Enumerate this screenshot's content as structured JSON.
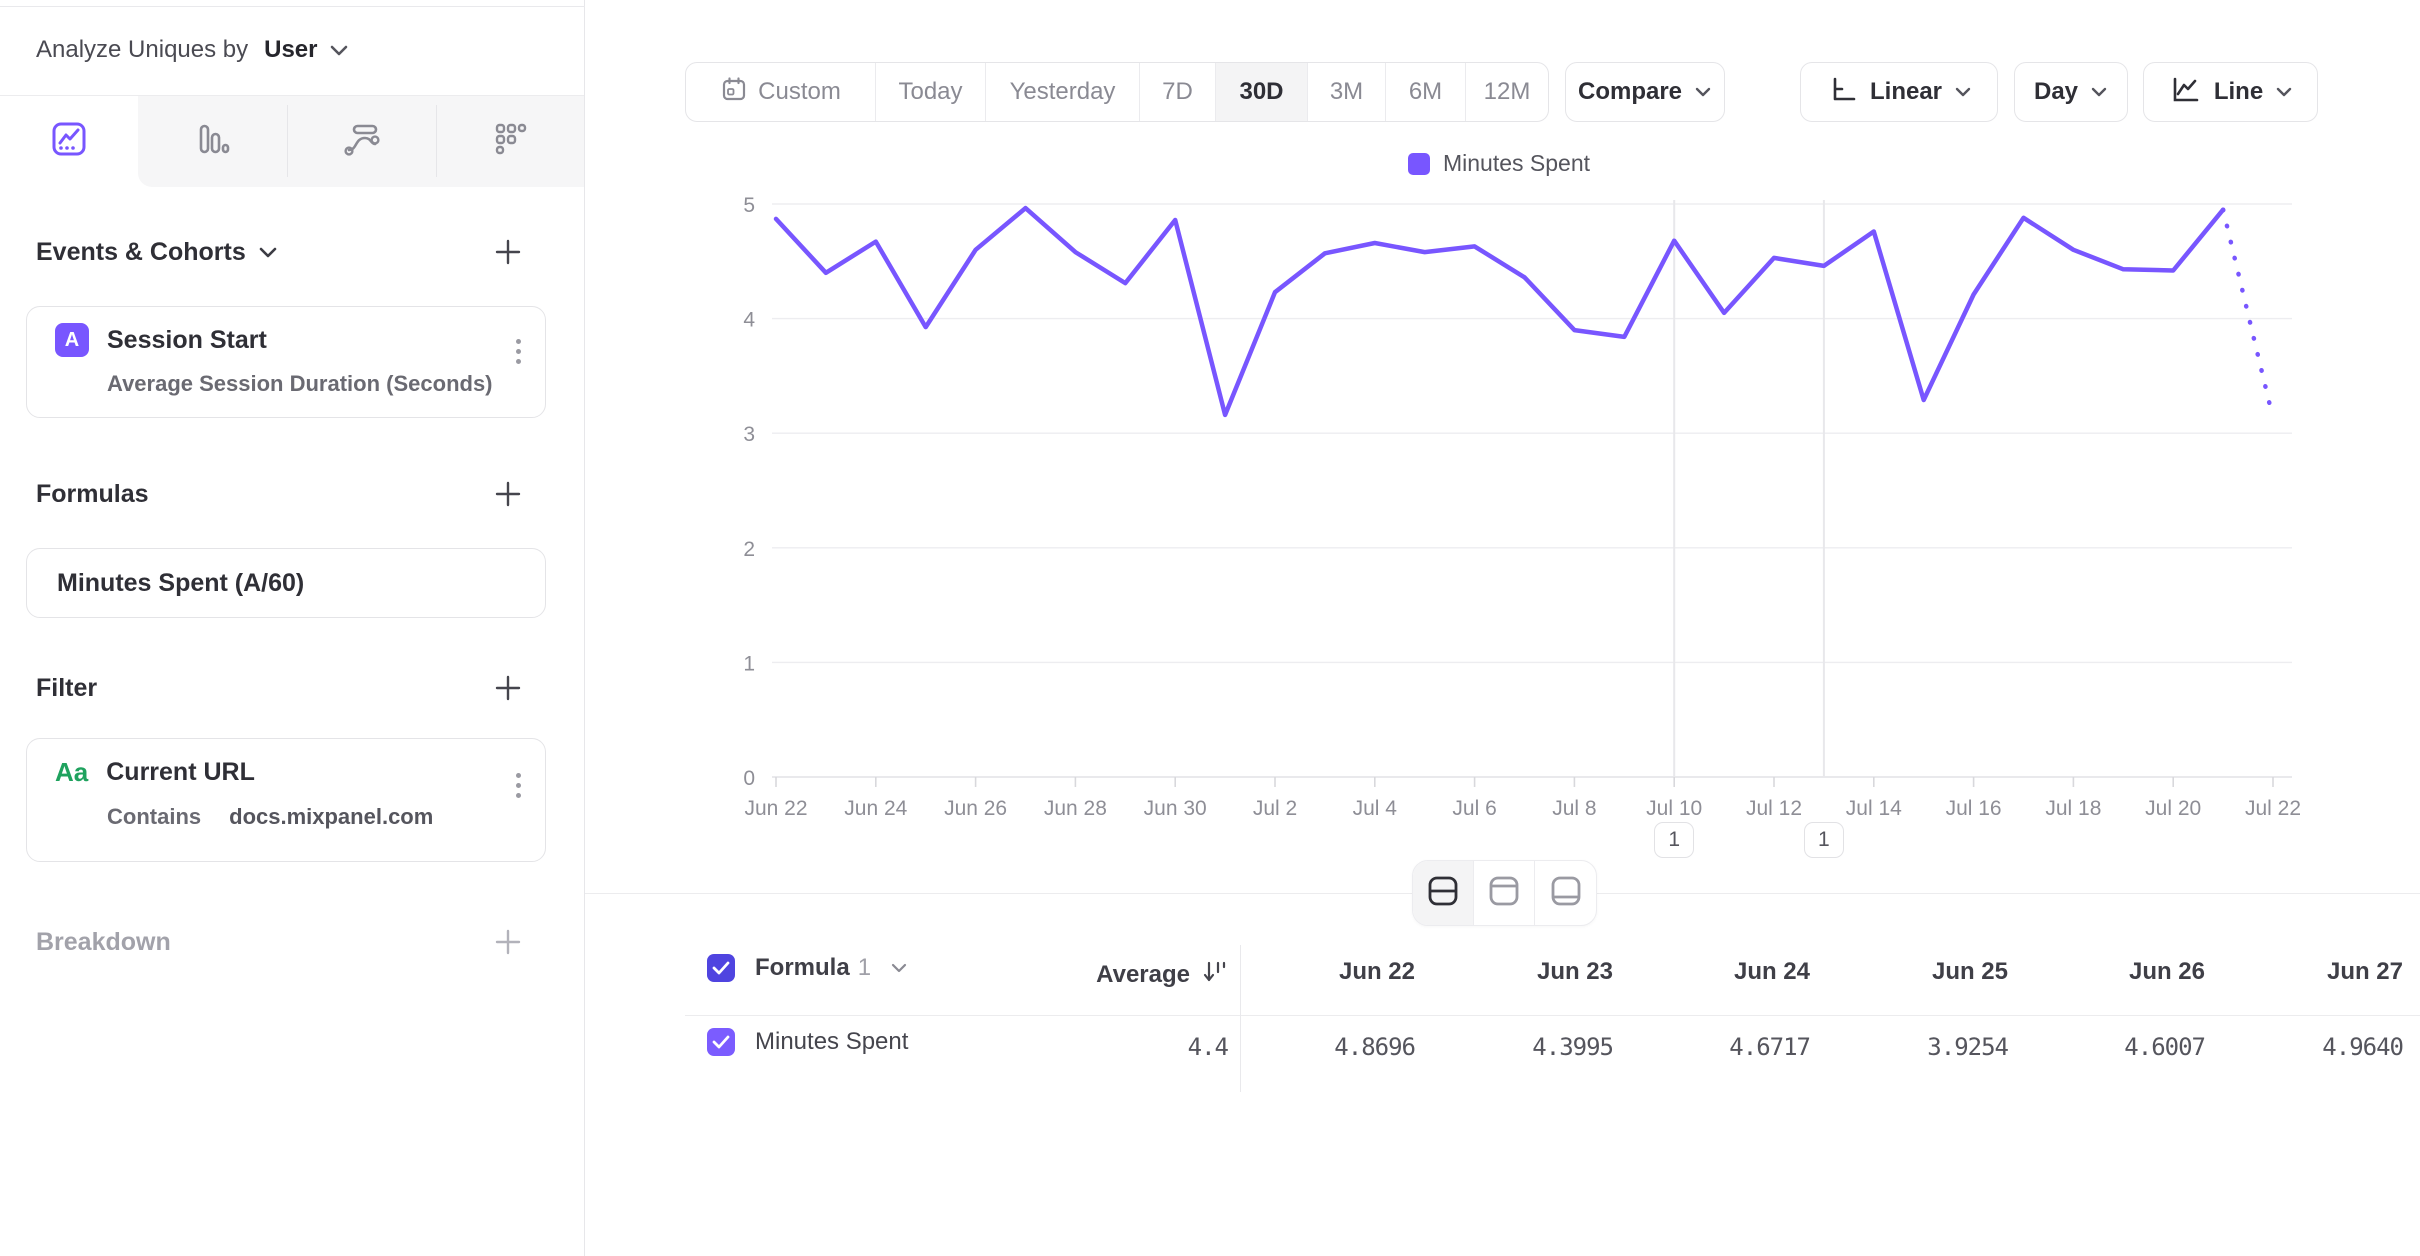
{
  "colors": {
    "accent": "#7856ff",
    "header_checkbox": "#4f44e0",
    "row_checkbox": "#7b5cff",
    "filter_icon_green": "#1fa25e",
    "gridline": "#ededf0",
    "axis_text": "#8e8e96"
  },
  "icons": {
    "calendar-icon": "calendar glyph",
    "chevron-down-icon": "v chevron",
    "plus-icon": "+",
    "kebab-menu-icon": "vertical 3 dots",
    "insights-tab-icon": "line chart in square",
    "funnels-tab-icon": "descending bars",
    "flows-tab-icon": "wavy flow lines",
    "retention-tab-icon": "dot grid staircase",
    "linear-scale-icon": "axis corner",
    "line-chart-icon": "mini trend line",
    "sort-descending-icon": "down arrow with bars",
    "checkbox-check-icon": "white check mark",
    "layout-split-icon": "rect split middle",
    "layout-chart-icon": "rect line top",
    "layout-table-icon": "rect line bottom"
  },
  "sidebar": {
    "analyze_label": "Analyze Uniques by",
    "analyze_value": "User",
    "events_title": "Events & Cohorts",
    "event_card": {
      "badge": "A",
      "title": "Session Start",
      "subtitle": "Average Session Duration (Seconds)"
    },
    "formulas_title": "Formulas",
    "formula_card_title": "Minutes Spent (A/60)",
    "filter_title": "Filter",
    "filter_card": {
      "icon": "Aa",
      "title": "Current URL",
      "operator": "Contains",
      "value": "docs.mixpanel.com"
    },
    "breakdown_title": "Breakdown"
  },
  "toolbar": {
    "date_ranges": [
      "Custom",
      "Today",
      "Yesterday",
      "7D",
      "30D",
      "3M",
      "6M",
      "12M"
    ],
    "selected_range": "30D",
    "compare_label": "Compare",
    "scale_label": "Linear",
    "granularity_label": "Day",
    "chart_type_label": "Line"
  },
  "chart_data": {
    "type": "line",
    "legend_position": "top-center",
    "grid": true,
    "ylim": [
      0,
      5
    ],
    "yticks": [
      0,
      1,
      2,
      3,
      4,
      5
    ],
    "x": [
      "Jun 22",
      "Jun 23",
      "Jun 24",
      "Jun 25",
      "Jun 26",
      "Jun 27",
      "Jun 28",
      "Jun 29",
      "Jun 30",
      "Jul 1",
      "Jul 2",
      "Jul 3",
      "Jul 4",
      "Jul 5",
      "Jul 6",
      "Jul 7",
      "Jul 8",
      "Jul 9",
      "Jul 10",
      "Jul 11",
      "Jul 12",
      "Jul 13",
      "Jul 14",
      "Jul 15",
      "Jul 16",
      "Jul 17",
      "Jul 18",
      "Jul 19",
      "Jul 20",
      "Jul 21",
      "Jul 22"
    ],
    "x_labeled_every": 2,
    "series": [
      {
        "name": "Minutes Spent",
        "color": "#7856ff",
        "values": [
          4.8696,
          4.3995,
          4.6717,
          3.9254,
          4.6007,
          4.964,
          4.58,
          4.31,
          4.86,
          3.16,
          4.23,
          4.57,
          4.66,
          4.58,
          4.63,
          4.36,
          3.9,
          3.84,
          4.68,
          4.05,
          4.53,
          4.46,
          4.76,
          3.29,
          4.21,
          4.88,
          4.6,
          4.43,
          4.42,
          4.95,
          3.13
        ],
        "last_segment_dotted": true
      }
    ],
    "annotations": [
      {
        "label": "1",
        "x": "Jul 10"
      },
      {
        "label": "1",
        "x": "Jul 13"
      }
    ]
  },
  "layout_toggle": {
    "options": [
      "split-view",
      "chart-view",
      "table-view"
    ],
    "selected": "split-view"
  },
  "table": {
    "header": {
      "group_label": "Formula",
      "group_index": "1",
      "average_label": "Average",
      "columns": [
        "Jun 22",
        "Jun 23",
        "Jun 24",
        "Jun 25",
        "Jun 26",
        "Jun 27"
      ]
    },
    "rows": [
      {
        "label": "Minutes Spent",
        "average": "4.4",
        "values": [
          "4.8696",
          "4.3995",
          "4.6717",
          "3.9254",
          "4.6007",
          "4.9640"
        ]
      }
    ]
  }
}
